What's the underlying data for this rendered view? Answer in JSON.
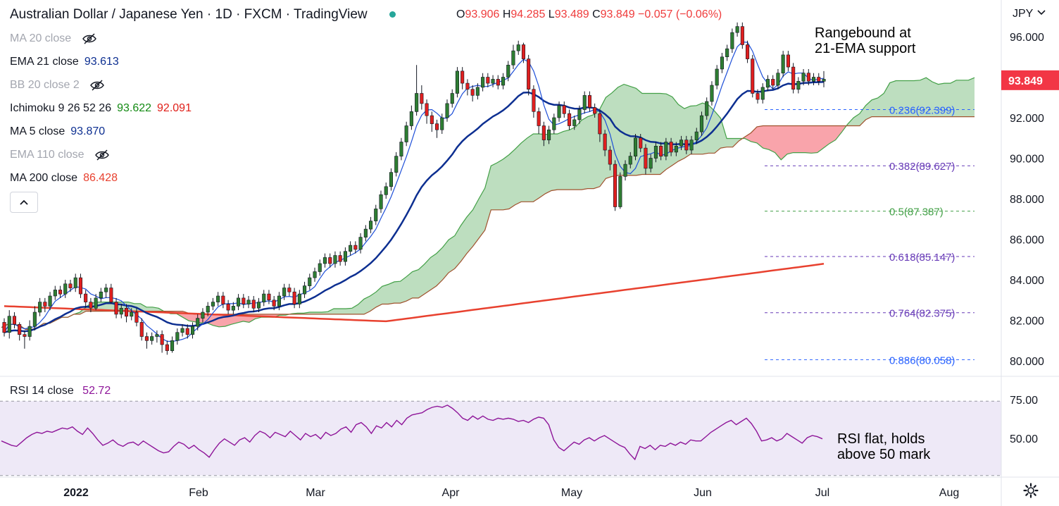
{
  "header": {
    "title": "Australian Dollar / Japanese Yen · 1D · FXCM · TradingView",
    "ohlc": [
      {
        "k": "O",
        "v": "93.906"
      },
      {
        "k": "H",
        "v": "94.285"
      },
      {
        "k": "L",
        "v": "93.489"
      },
      {
        "k": "C",
        "v": "93.849"
      }
    ],
    "change": "−0.057 (−0.06%)",
    "currency": "JPY",
    "status_color": "#26a69a"
  },
  "indicators": [
    {
      "name": "MA 20 close",
      "value": "",
      "hidden": true,
      "color": ""
    },
    {
      "name": "EMA 21 close",
      "value": "93.613",
      "hidden": false,
      "color": "#0d2f91"
    },
    {
      "name": "BB 20 close 2",
      "value": "",
      "hidden": true,
      "color": ""
    },
    {
      "name": "Ichimoku 9 26 52 26",
      "value": "93.622",
      "value2": "92.091",
      "hidden": false,
      "color": "#138a13",
      "color2": "#e0201a"
    },
    {
      "name": "MA 5 close",
      "value": "93.870",
      "hidden": false,
      "color": "#0d2f91"
    },
    {
      "name": "EMA 110 close",
      "value": "",
      "hidden": true,
      "color": ""
    },
    {
      "name": "MA 200 close",
      "value": "86.428",
      "hidden": false,
      "color": "#e8412f"
    }
  ],
  "rsi": {
    "label": "RSI 14 close",
    "value": "52.72",
    "color": "#8e1599"
  },
  "annotations": {
    "top": [
      "Rangebound at",
      "21-EMA support"
    ],
    "bottom": [
      "RSI flat, holds",
      "above 50 mark"
    ]
  },
  "chart_data": {
    "type": "candlestick",
    "x_tick_labels": [
      "2022",
      "Feb",
      "Mar",
      "Apr",
      "May",
      "Jun",
      "Jul",
      "Aug"
    ],
    "y_tick_labels": [
      "96.000",
      "94.000",
      "92.000",
      "90.000",
      "88.000",
      "86.000",
      "84.000",
      "82.000",
      "80.000"
    ],
    "ylim": [
      79.5,
      97.3
    ],
    "last_price": "93.849",
    "last_price_color": "#f23645",
    "up_color": "#2e7d32",
    "down_color": "#e01f1f",
    "fibonacci": [
      {
        "label": "0.236(92.399)",
        "value": 92.399,
        "color": "#2962ff"
      },
      {
        "label": "0.382(89.627)",
        "value": 89.627,
        "color": "#673ab7"
      },
      {
        "label": "0.5(87.387)",
        "value": 87.387,
        "color": "#43a047"
      },
      {
        "label": "0.618(85.147)",
        "value": 85.147,
        "color": "#673ab7"
      },
      {
        "label": "0.764(82.375)",
        "value": 82.375,
        "color": "#673ab7"
      },
      {
        "label": "0.886(80.058)",
        "value": 80.058,
        "color": "#2962ff"
      }
    ],
    "rsi_tick_labels": [
      "75.00",
      "50.00"
    ],
    "rsi_ylim": [
      25,
      85
    ],
    "rsi_band": [
      30,
      70
    ],
    "rsi_values": [
      49,
      47,
      45,
      44,
      48,
      52,
      55,
      57,
      56,
      58,
      57,
      59,
      61,
      60,
      62,
      58,
      55,
      61,
      56,
      50,
      45,
      47,
      50,
      46,
      44,
      47,
      48,
      45,
      49,
      46,
      43,
      40,
      38,
      39,
      44,
      48,
      46,
      42,
      45,
      41,
      38,
      34,
      41,
      47,
      51,
      48,
      45,
      50,
      52,
      48,
      54,
      58,
      56,
      52,
      57,
      55,
      53,
      58,
      54,
      50,
      56,
      53,
      55,
      51,
      57,
      54,
      56,
      60,
      62,
      57,
      64,
      66,
      62,
      56,
      63,
      61,
      66,
      62,
      68,
      64,
      70,
      73,
      74,
      75,
      78,
      80,
      81,
      80,
      82,
      79,
      75,
      70,
      68,
      72,
      69,
      72,
      69,
      68,
      70,
      69,
      70,
      69,
      67,
      68,
      66,
      69,
      71,
      70,
      64,
      50,
      43,
      40,
      44,
      48,
      46,
      50,
      52,
      49,
      52,
      54,
      51,
      48,
      45,
      43,
      37,
      32,
      44,
      42,
      45,
      41,
      45,
      44,
      47,
      45,
      48,
      46,
      50,
      49,
      49,
      53,
      57,
      60,
      63,
      66,
      68,
      64,
      67,
      70,
      65,
      58,
      49,
      50,
      52,
      49,
      51,
      56,
      53,
      50,
      47,
      52,
      54,
      53,
      51
    ],
    "candles": [
      [
        81.9,
        81.4,
        81.2,
        82.1
      ],
      [
        81.4,
        82.2,
        81.1,
        82.5
      ],
      [
        82.2,
        81.8,
        81.6,
        82.4
      ],
      [
        81.8,
        81.3,
        81.0,
        81.9
      ],
      [
        81.3,
        81.2,
        80.6,
        81.5
      ],
      [
        81.2,
        81.7,
        81.0,
        82.0
      ],
      [
        81.7,
        82.4,
        81.5,
        82.7
      ],
      [
        82.4,
        82.9,
        82.2,
        83.1
      ],
      [
        82.9,
        82.7,
        82.4,
        83.1
      ],
      [
        82.7,
        83.2,
        82.5,
        83.4
      ],
      [
        83.2,
        83.5,
        83.0,
        83.7
      ],
      [
        83.5,
        83.3,
        83.1,
        83.7
      ],
      [
        83.3,
        83.8,
        83.1,
        84.0
      ],
      [
        83.8,
        83.6,
        83.4,
        84.0
      ],
      [
        83.6,
        84.1,
        83.4,
        84.3
      ],
      [
        84.1,
        83.3,
        83.1,
        84.3
      ],
      [
        83.3,
        82.9,
        82.6,
        83.5
      ],
      [
        82.9,
        82.6,
        82.4,
        83.1
      ],
      [
        82.6,
        83.1,
        82.5,
        83.3
      ],
      [
        83.1,
        83.4,
        82.9,
        83.6
      ],
      [
        83.4,
        83.6,
        83.1,
        83.8
      ],
      [
        83.6,
        82.9,
        82.8,
        83.8
      ],
      [
        82.9,
        82.3,
        82.1,
        83.1
      ],
      [
        82.3,
        82.6,
        82.1,
        82.8
      ],
      [
        82.6,
        82.2,
        81.9,
        82.8
      ],
      [
        82.2,
        82.4,
        82.0,
        82.6
      ],
      [
        82.4,
        81.9,
        81.7,
        82.6
      ],
      [
        81.9,
        81.2,
        81.0,
        82.1
      ],
      [
        81.2,
        81.0,
        80.6,
        81.4
      ],
      [
        81.0,
        81.2,
        80.8,
        81.4
      ],
      [
        81.2,
        81.3,
        80.9,
        81.5
      ],
      [
        81.3,
        80.8,
        80.4,
        81.5
      ],
      [
        80.8,
        80.5,
        80.3,
        81.0
      ],
      [
        80.5,
        81.0,
        80.4,
        81.2
      ],
      [
        81.0,
        81.4,
        80.8,
        81.6
      ],
      [
        81.4,
        81.6,
        81.2,
        81.8
      ],
      [
        81.6,
        81.3,
        81.1,
        81.8
      ],
      [
        81.3,
        81.7,
        81.1,
        81.9
      ],
      [
        81.7,
        82.1,
        81.5,
        82.3
      ],
      [
        82.1,
        82.4,
        81.9,
        82.6
      ],
      [
        82.4,
        82.7,
        82.2,
        82.9
      ],
      [
        82.7,
        82.9,
        82.5,
        83.1
      ],
      [
        82.9,
        83.2,
        82.7,
        83.4
      ],
      [
        83.2,
        82.8,
        82.6,
        83.4
      ],
      [
        82.8,
        82.5,
        82.3,
        83.0
      ],
      [
        82.5,
        82.7,
        82.3,
        82.9
      ],
      [
        82.7,
        83.1,
        82.5,
        83.3
      ],
      [
        83.1,
        82.8,
        82.6,
        83.3
      ],
      [
        82.8,
        83.0,
        82.6,
        83.2
      ],
      [
        83.0,
        82.6,
        82.4,
        83.2
      ],
      [
        82.6,
        82.9,
        82.4,
        83.1
      ],
      [
        82.9,
        83.3,
        82.7,
        83.5
      ],
      [
        83.3,
        83.0,
        82.8,
        83.5
      ],
      [
        83.0,
        82.7,
        82.5,
        83.2
      ],
      [
        82.7,
        83.2,
        82.5,
        83.4
      ],
      [
        83.2,
        83.6,
        83.0,
        83.8
      ],
      [
        83.6,
        83.4,
        83.2,
        83.8
      ],
      [
        83.4,
        82.8,
        82.6,
        83.6
      ],
      [
        82.8,
        83.3,
        82.6,
        83.5
      ],
      [
        83.3,
        83.7,
        83.1,
        83.9
      ],
      [
        83.7,
        84.1,
        83.5,
        84.3
      ],
      [
        84.1,
        84.4,
        83.9,
        84.6
      ],
      [
        84.4,
        84.8,
        84.2,
        85.0
      ],
      [
        84.8,
        85.1,
        84.6,
        85.3
      ],
      [
        85.1,
        84.8,
        84.6,
        85.3
      ],
      [
        84.8,
        85.2,
        84.6,
        85.4
      ],
      [
        85.2,
        84.9,
        84.7,
        85.4
      ],
      [
        84.9,
        85.4,
        84.7,
        85.6
      ],
      [
        85.4,
        85.7,
        85.2,
        85.9
      ],
      [
        85.7,
        85.5,
        85.3,
        85.9
      ],
      [
        85.5,
        86.1,
        85.3,
        86.3
      ],
      [
        86.1,
        86.5,
        85.9,
        86.7
      ],
      [
        86.5,
        86.9,
        86.3,
        87.1
      ],
      [
        86.9,
        87.5,
        86.7,
        87.7
      ],
      [
        87.5,
        88.2,
        87.3,
        88.4
      ],
      [
        88.2,
        88.6,
        88.0,
        88.8
      ],
      [
        88.6,
        89.3,
        88.4,
        89.5
      ],
      [
        89.3,
        90.1,
        89.1,
        90.3
      ],
      [
        90.1,
        90.8,
        89.9,
        91.0
      ],
      [
        90.8,
        91.6,
        90.6,
        91.8
      ],
      [
        91.6,
        92.3,
        91.4,
        92.6
      ],
      [
        92.3,
        93.2,
        92.1,
        94.6
      ],
      [
        93.2,
        92.7,
        92.4,
        93.6
      ],
      [
        92.7,
        92.1,
        91.7,
        92.9
      ],
      [
        92.1,
        91.7,
        91.3,
        92.3
      ],
      [
        91.7,
        91.4,
        91.0,
        91.9
      ],
      [
        91.4,
        92.0,
        91.2,
        92.2
      ],
      [
        92.0,
        92.7,
        91.8,
        92.9
      ],
      [
        92.7,
        93.2,
        92.5,
        93.4
      ],
      [
        93.2,
        94.3,
        93.0,
        94.5
      ],
      [
        94.3,
        93.7,
        93.4,
        94.5
      ],
      [
        93.7,
        93.4,
        93.1,
        93.9
      ],
      [
        93.4,
        93.1,
        92.8,
        93.6
      ],
      [
        93.1,
        93.5,
        92.9,
        93.7
      ],
      [
        93.5,
        94.0,
        93.3,
        94.2
      ],
      [
        94.0,
        93.7,
        93.5,
        94.2
      ],
      [
        93.7,
        93.9,
        93.5,
        94.1
      ],
      [
        93.9,
        93.6,
        93.4,
        94.1
      ],
      [
        93.6,
        94.0,
        93.4,
        94.2
      ],
      [
        94.0,
        94.6,
        93.8,
        94.8
      ],
      [
        94.6,
        95.3,
        94.4,
        95.6
      ],
      [
        95.3,
        95.6,
        95.1,
        95.8
      ],
      [
        95.6,
        94.9,
        94.7,
        95.7
      ],
      [
        94.9,
        93.4,
        93.1,
        95.1
      ],
      [
        93.4,
        92.3,
        92.0,
        93.6
      ],
      [
        92.3,
        91.6,
        91.2,
        92.5
      ],
      [
        91.6,
        90.9,
        90.6,
        91.8
      ],
      [
        90.9,
        91.4,
        90.7,
        91.6
      ],
      [
        91.4,
        92.0,
        91.2,
        92.2
      ],
      [
        92.0,
        92.6,
        91.8,
        92.8
      ],
      [
        92.6,
        92.2,
        92.0,
        92.8
      ],
      [
        92.2,
        91.6,
        91.4,
        92.4
      ],
      [
        91.6,
        91.9,
        91.4,
        92.1
      ],
      [
        91.9,
        92.4,
        91.7,
        92.6
      ],
      [
        92.4,
        93.1,
        92.2,
        93.3
      ],
      [
        93.1,
        92.5,
        92.3,
        93.3
      ],
      [
        92.5,
        92.2,
        92.0,
        92.7
      ],
      [
        92.2,
        91.2,
        90.8,
        92.4
      ],
      [
        91.2,
        90.4,
        90.1,
        91.4
      ],
      [
        90.4,
        89.7,
        89.4,
        90.6
      ],
      [
        89.7,
        87.6,
        87.4,
        89.9
      ],
      [
        87.6,
        89.1,
        87.5,
        89.3
      ],
      [
        89.1,
        89.7,
        88.9,
        89.9
      ],
      [
        89.7,
        90.1,
        89.5,
        90.3
      ],
      [
        90.1,
        91.0,
        89.9,
        91.2
      ],
      [
        91.0,
        90.5,
        90.3,
        91.2
      ],
      [
        90.5,
        89.5,
        89.2,
        90.7
      ],
      [
        89.5,
        90.0,
        89.3,
        90.2
      ],
      [
        90.0,
        90.6,
        89.8,
        90.8
      ],
      [
        90.6,
        90.1,
        89.9,
        90.8
      ],
      [
        90.1,
        90.8,
        89.9,
        91.0
      ],
      [
        90.8,
        90.3,
        90.1,
        91.0
      ],
      [
        90.3,
        90.6,
        90.1,
        90.8
      ],
      [
        90.6,
        90.9,
        90.4,
        91.1
      ],
      [
        90.9,
        90.4,
        90.2,
        91.1
      ],
      [
        90.4,
        90.9,
        90.2,
        91.1
      ],
      [
        90.9,
        91.3,
        90.7,
        91.5
      ],
      [
        91.3,
        92.1,
        91.1,
        92.3
      ],
      [
        92.1,
        92.8,
        91.9,
        93.0
      ],
      [
        92.8,
        93.6,
        92.6,
        93.8
      ],
      [
        93.6,
        94.4,
        93.4,
        94.6
      ],
      [
        94.4,
        95.0,
        94.2,
        95.2
      ],
      [
        95.0,
        95.4,
        94.8,
        95.6
      ],
      [
        95.4,
        96.2,
        95.2,
        96.4
      ],
      [
        96.2,
        96.5,
        96.0,
        96.7
      ],
      [
        96.5,
        95.6,
        95.4,
        96.7
      ],
      [
        95.6,
        94.9,
        94.7,
        95.8
      ],
      [
        94.9,
        93.2,
        93.0,
        95.1
      ],
      [
        93.2,
        92.9,
        92.7,
        93.4
      ],
      [
        92.9,
        93.5,
        92.7,
        93.7
      ],
      [
        93.5,
        93.9,
        93.3,
        94.1
      ],
      [
        93.9,
        93.6,
        93.4,
        94.1
      ],
      [
        93.6,
        94.2,
        93.4,
        94.4
      ],
      [
        94.2,
        95.1,
        94.0,
        95.3
      ],
      [
        95.1,
        94.5,
        94.3,
        95.3
      ],
      [
        94.5,
        93.4,
        93.2,
        94.7
      ],
      [
        93.4,
        93.8,
        93.2,
        94.0
      ],
      [
        93.8,
        94.2,
        93.6,
        94.4
      ],
      [
        94.2,
        93.8,
        93.6,
        94.4
      ],
      [
        93.8,
        94.0,
        93.6,
        94.2
      ],
      [
        94.0,
        93.8,
        93.6,
        94.2
      ],
      [
        93.8,
        93.9,
        93.5,
        94.3
      ]
    ]
  }
}
